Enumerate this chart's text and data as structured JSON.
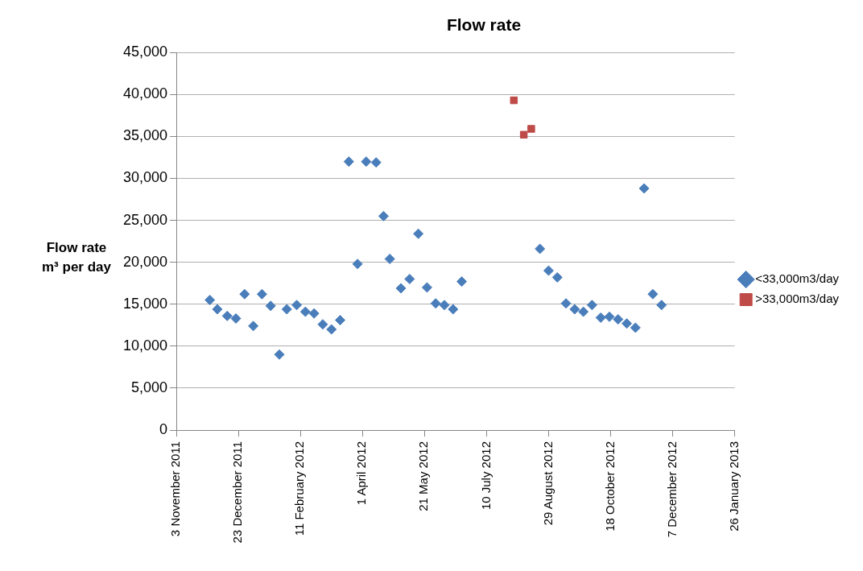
{
  "chart_data": {
    "type": "scatter",
    "title": "Flow rate",
    "ylabel": "Flow rate m³ per day",
    "xlim": [
      "2011-11-03",
      "2013-01-26"
    ],
    "xticks": [
      {
        "value": "2011-11-03",
        "label": "3 November 2011"
      },
      {
        "value": "2011-12-23",
        "label": "23 December 2011"
      },
      {
        "value": "2012-02-11",
        "label": "11 February 2012"
      },
      {
        "value": "2012-04-01",
        "label": "1 April 2012"
      },
      {
        "value": "2012-05-21",
        "label": "21 May 2012"
      },
      {
        "value": "2012-07-10",
        "label": "10 July 2012"
      },
      {
        "value": "2012-08-29",
        "label": "29 August 2012"
      },
      {
        "value": "2012-10-18",
        "label": "18 October 2012"
      },
      {
        "value": "2012-12-07",
        "label": "7 December 2012"
      },
      {
        "value": "2013-01-26",
        "label": "26 January 2013"
      }
    ],
    "ylim": [
      0,
      45000
    ],
    "yticks": [
      {
        "value": 0,
        "label": "0"
      },
      {
        "value": 5000,
        "label": "5,000"
      },
      {
        "value": 10000,
        "label": "10,000"
      },
      {
        "value": 15000,
        "label": "15,000"
      },
      {
        "value": 20000,
        "label": "20,000"
      },
      {
        "value": 25000,
        "label": "25,000"
      },
      {
        "value": 30000,
        "label": "30,000"
      },
      {
        "value": 35000,
        "label": "35,000"
      },
      {
        "value": 40000,
        "label": "40,000"
      },
      {
        "value": 45000,
        "label": "45,000"
      }
    ],
    "grid": "y",
    "legend": "right",
    "series": [
      {
        "name": "<33,000m3/day",
        "color": "#4a7ebb",
        "marker": "diamond",
        "x": [
          "2011-11-30",
          "2011-12-06",
          "2011-12-14",
          "2011-12-21",
          "2011-12-28",
          "2012-01-04",
          "2012-01-11",
          "2012-01-18",
          "2012-01-25",
          "2012-01-31",
          "2012-02-08",
          "2012-02-15",
          "2012-02-22",
          "2012-02-29",
          "2012-03-07",
          "2012-03-14",
          "2012-03-21",
          "2012-03-28",
          "2012-04-04",
          "2012-04-12",
          "2012-04-18",
          "2012-04-23",
          "2012-05-02",
          "2012-05-09",
          "2012-05-16",
          "2012-05-23",
          "2012-05-30",
          "2012-06-06",
          "2012-06-13",
          "2012-06-20",
          "2012-08-22",
          "2012-08-29",
          "2012-09-05",
          "2012-09-12",
          "2012-09-19",
          "2012-09-26",
          "2012-10-03",
          "2012-10-10",
          "2012-10-17",
          "2012-10-24",
          "2012-10-31",
          "2012-11-07",
          "2012-11-14",
          "2012-11-21",
          "2012-11-28"
        ],
        "values": [
          15500,
          14400,
          13600,
          13300,
          16200,
          12400,
          16200,
          14800,
          9000,
          14400,
          14900,
          14100,
          13900,
          12600,
          12000,
          13100,
          32000,
          19800,
          32000,
          31900,
          25500,
          20400,
          16900,
          18000,
          23400,
          17000,
          15100,
          14900,
          14400,
          17700,
          21600,
          19000,
          18200,
          15100,
          14400,
          14100,
          14900,
          13400,
          13500,
          13200,
          12700,
          12200,
          28800,
          16200,
          14900
        ]
      },
      {
        "name": ">33,000m3/day",
        "color": "#be4b48",
        "marker": "square",
        "x": [
          "2012-08-01",
          "2012-08-09",
          "2012-08-15"
        ],
        "values": [
          39300,
          35200,
          35900
        ]
      }
    ]
  }
}
